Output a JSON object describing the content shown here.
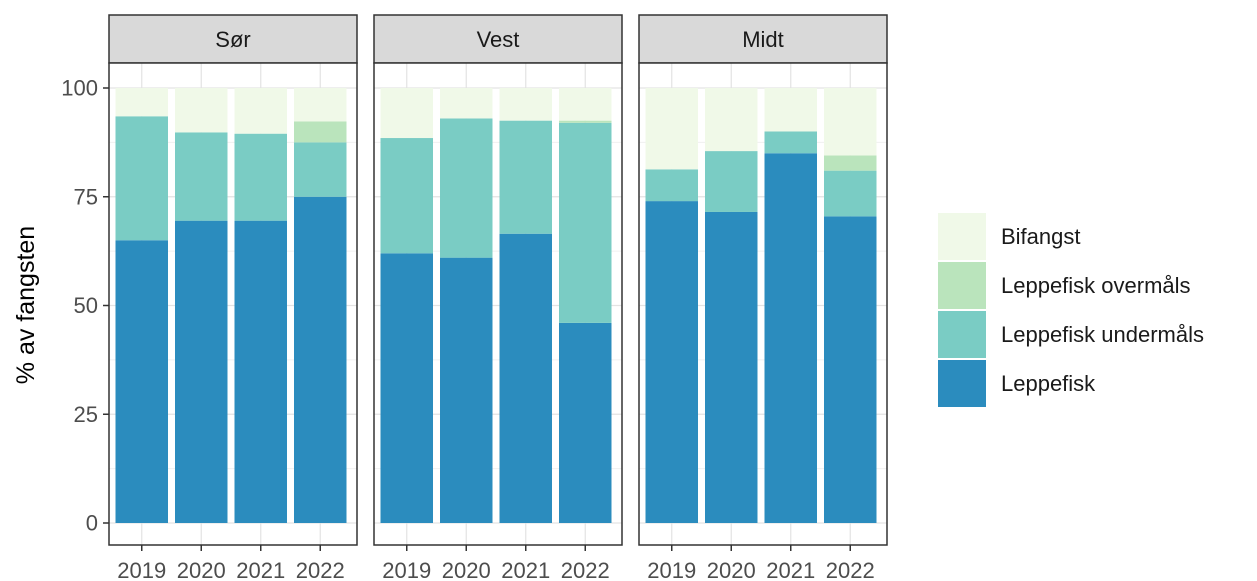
{
  "chart_data": {
    "type": "bar",
    "stacked": true,
    "ylabel": "% av fangsten",
    "xlabel": "",
    "ylim": [
      0,
      100
    ],
    "yticks": [
      0,
      25,
      50,
      75,
      100
    ],
    "grid": true,
    "legend_position": "right",
    "categories": [
      "2019",
      "2020",
      "2021",
      "2022"
    ],
    "facets": [
      {
        "name": "Sør",
        "series": [
          {
            "name": "Leppefisk",
            "values": [
              65,
              69.5,
              69.5,
              75
            ]
          },
          {
            "name": "Leppefisk undermåls",
            "values": [
              28.5,
              20.3,
              20,
              12.5
            ]
          },
          {
            "name": "Leppefisk overmåls",
            "values": [
              0,
              0,
              0,
              4.8
            ]
          },
          {
            "name": "Bifangst",
            "values": [
              6.5,
              10.2,
              10.5,
              7.7
            ]
          }
        ]
      },
      {
        "name": "Vest",
        "series": [
          {
            "name": "Leppefisk",
            "values": [
              62,
              61,
              66.5,
              46
            ]
          },
          {
            "name": "Leppefisk undermåls",
            "values": [
              26.5,
              32,
              26,
              46
            ]
          },
          {
            "name": "Leppefisk overmåls",
            "values": [
              0,
              0,
              0,
              0.5
            ]
          },
          {
            "name": "Bifangst",
            "values": [
              11.5,
              7,
              7.5,
              7.5
            ]
          }
        ]
      },
      {
        "name": "Midt",
        "series": [
          {
            "name": "Leppefisk",
            "values": [
              74,
              71.5,
              85,
              70.5
            ]
          },
          {
            "name": "Leppefisk undermåls",
            "values": [
              7.3,
              14,
              5,
              10.5
            ]
          },
          {
            "name": "Leppefisk overmåls",
            "values": [
              0,
              0,
              0,
              3.5
            ]
          },
          {
            "name": "Bifangst",
            "values": [
              18.7,
              14.5,
              10,
              15.5
            ]
          }
        ]
      }
    ],
    "legend": [
      "Bifangst",
      "Leppefisk overmåls",
      "Leppefisk undermåls",
      "Leppefisk"
    ],
    "colors": {
      "Leppefisk": "#2b8cbe",
      "Leppefisk undermåls": "#7accc4",
      "Leppefisk overmåls": "#bae4bc",
      "Bifangst": "#f0f9e8"
    }
  }
}
